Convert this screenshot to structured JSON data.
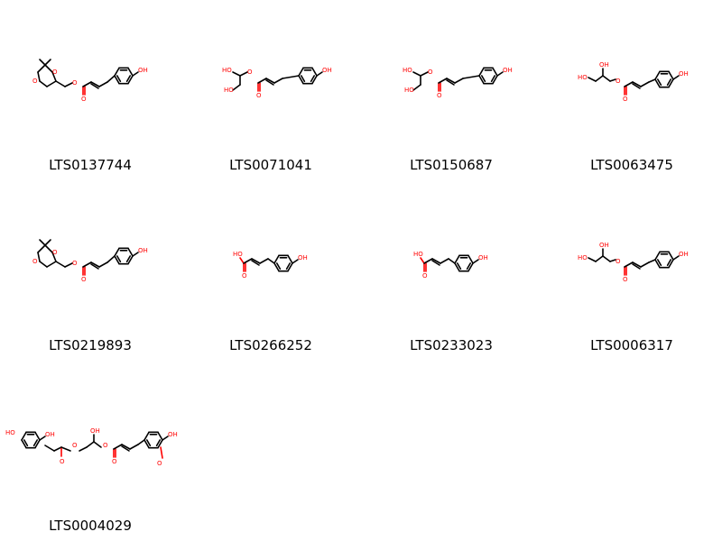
{
  "compounds": [
    {
      "id": "LTS0137744",
      "structure": "acetonide-ester"
    },
    {
      "id": "LTS0071041",
      "structure": "glyceryl-2-ester"
    },
    {
      "id": "LTS0150687",
      "structure": "glyceryl-2-ester"
    },
    {
      "id": "LTS0063475",
      "structure": "glyceryl-1-ester"
    },
    {
      "id": "LTS0219893",
      "structure": "acetonide-ester"
    },
    {
      "id": "LTS0266252",
      "structure": "coumaric-acid"
    },
    {
      "id": "LTS0233023",
      "structure": "coumaric-acid"
    },
    {
      "id": "LTS0006317",
      "structure": "glyceryl-1-ester"
    },
    {
      "id": "LTS0004029",
      "structure": "diester"
    }
  ],
  "atom_labels": {
    "hydroxyl": "OH",
    "hydroxyl_left": "HO",
    "oxygen": "O"
  },
  "colors": {
    "oxygen": "#ff0000",
    "carbon": "#000000",
    "background": "#ffffff"
  }
}
